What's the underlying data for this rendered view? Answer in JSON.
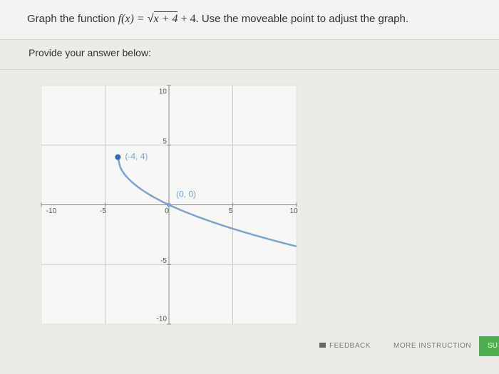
{
  "header": {
    "lead": "Graph the function",
    "function_name": "f(x) =",
    "radicand": "x + 4",
    "function_rest": "+ 4.",
    "instruction": "Use the moveable point to adjust the graph."
  },
  "prompt": "Provide your answer below:",
  "graph": {
    "xlim": [
      -10,
      10
    ],
    "ylim": [
      -10,
      10
    ],
    "xticks": [
      -10,
      -5,
      0,
      5,
      10
    ],
    "yticks": [
      -10,
      -5,
      5,
      10
    ],
    "grid": [
      -5,
      5
    ],
    "curve_color": "#7aa3d6",
    "points": [
      {
        "label": "(-4, 4)",
        "x": -4,
        "y": 4
      },
      {
        "label": "(0, 0)",
        "x": 0,
        "y": 0
      }
    ]
  },
  "buttons": {
    "feedback": "FEEDBACK",
    "more": "MORE INSTRUCTION",
    "submit": "SU"
  }
}
